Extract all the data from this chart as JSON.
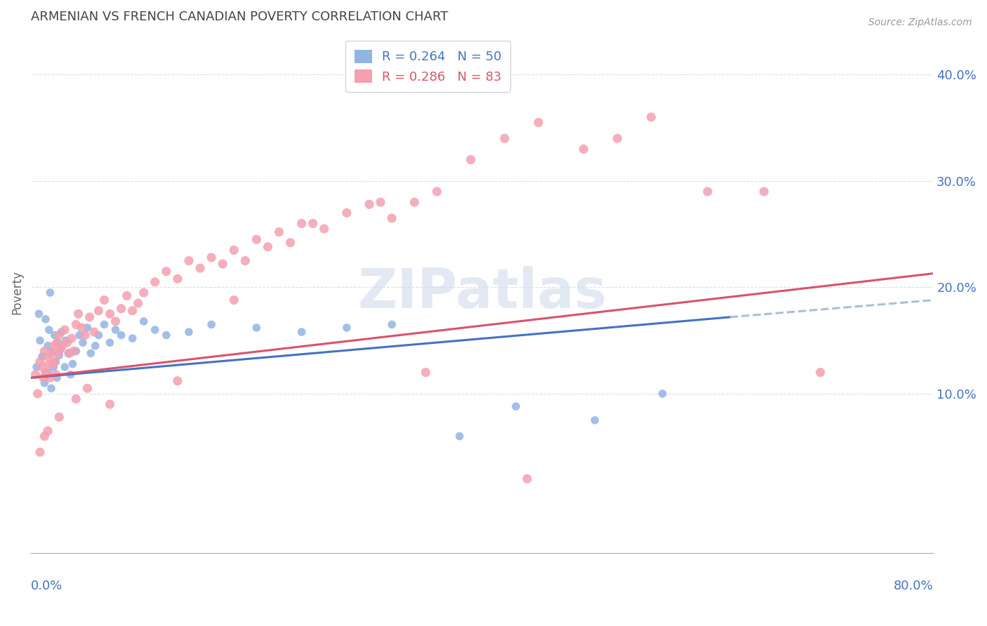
{
  "title": "ARMENIAN VS FRENCH CANADIAN POVERTY CORRELATION CHART",
  "source": "Source: ZipAtlas.com",
  "ylabel": "Poverty",
  "xlim": [
    0.0,
    0.8
  ],
  "ylim": [
    -0.05,
    0.44
  ],
  "yticks": [
    0.1,
    0.2,
    0.3,
    0.4
  ],
  "ytick_labels": [
    "10.0%",
    "20.0%",
    "30.0%",
    "40.0%"
  ],
  "xtick_left_label": "0.0%",
  "xtick_right_label": "80.0%",
  "armenian_color": "#92b4e3",
  "french_color": "#f4a0b0",
  "trendline_armenian_color": "#4472c4",
  "trendline_french_color": "#d9536a",
  "trendline_extension_color": "#a8bfd8",
  "legend_r_armenian": "R = 0.264",
  "legend_n_armenian": "N = 50",
  "legend_r_french": "R = 0.286",
  "legend_n_french": "N = 83",
  "watermark": "ZIPatlas",
  "background_color": "#ffffff",
  "grid_color": "#d8e0ec",
  "title_color": "#444444",
  "axis_label_color": "#4472c4",
  "armenian_marker_size": 70,
  "french_marker_size": 90,
  "trendline_armenian_x0": 0.0,
  "trendline_armenian_x1": 0.62,
  "trendline_armenian_y0": 0.115,
  "trendline_armenian_y1": 0.172,
  "trendline_ext_x0": 0.62,
  "trendline_ext_x1": 0.8,
  "trendline_ext_y0": 0.172,
  "trendline_ext_y1": 0.188,
  "trendline_french_x0": 0.0,
  "trendline_french_x1": 0.8,
  "trendline_french_y0": 0.115,
  "trendline_french_y1": 0.213,
  "arm_x": [
    0.005,
    0.007,
    0.008,
    0.01,
    0.012,
    0.013,
    0.015,
    0.015,
    0.016,
    0.017,
    0.018,
    0.019,
    0.02,
    0.021,
    0.022,
    0.023,
    0.024,
    0.025,
    0.026,
    0.027,
    0.03,
    0.031,
    0.033,
    0.035,
    0.037,
    0.04,
    0.043,
    0.046,
    0.05,
    0.053,
    0.057,
    0.06,
    0.065,
    0.07,
    0.075,
    0.08,
    0.09,
    0.1,
    0.11,
    0.12,
    0.14,
    0.16,
    0.2,
    0.24,
    0.28,
    0.32,
    0.38,
    0.43,
    0.5,
    0.56
  ],
  "arm_y": [
    0.125,
    0.175,
    0.15,
    0.135,
    0.11,
    0.17,
    0.145,
    0.12,
    0.16,
    0.195,
    0.105,
    0.14,
    0.125,
    0.155,
    0.13,
    0.115,
    0.148,
    0.136,
    0.142,
    0.158,
    0.125,
    0.15,
    0.138,
    0.118,
    0.128,
    0.14,
    0.155,
    0.148,
    0.162,
    0.138,
    0.145,
    0.155,
    0.165,
    0.148,
    0.16,
    0.155,
    0.152,
    0.168,
    0.16,
    0.155,
    0.158,
    0.165,
    0.162,
    0.158,
    0.162,
    0.165,
    0.06,
    0.088,
    0.075,
    0.1
  ],
  "fr_x": [
    0.004,
    0.006,
    0.008,
    0.01,
    0.011,
    0.012,
    0.013,
    0.014,
    0.015,
    0.016,
    0.017,
    0.018,
    0.019,
    0.02,
    0.021,
    0.022,
    0.023,
    0.024,
    0.025,
    0.026,
    0.028,
    0.03,
    0.032,
    0.034,
    0.036,
    0.038,
    0.04,
    0.042,
    0.045,
    0.048,
    0.052,
    0.056,
    0.06,
    0.065,
    0.07,
    0.075,
    0.08,
    0.085,
    0.09,
    0.095,
    0.1,
    0.11,
    0.12,
    0.13,
    0.14,
    0.15,
    0.16,
    0.17,
    0.18,
    0.19,
    0.2,
    0.21,
    0.22,
    0.23,
    0.24,
    0.26,
    0.28,
    0.3,
    0.32,
    0.34,
    0.36,
    0.39,
    0.42,
    0.45,
    0.49,
    0.52,
    0.55,
    0.6,
    0.65,
    0.7,
    0.18,
    0.25,
    0.31,
    0.07,
    0.13,
    0.05,
    0.04,
    0.025,
    0.015,
    0.012,
    0.008,
    0.35,
    0.44
  ],
  "fr_y": [
    0.118,
    0.1,
    0.13,
    0.125,
    0.115,
    0.14,
    0.12,
    0.118,
    0.135,
    0.128,
    0.115,
    0.138,
    0.128,
    0.145,
    0.13,
    0.118,
    0.148,
    0.138,
    0.155,
    0.142,
    0.145,
    0.16,
    0.148,
    0.138,
    0.152,
    0.14,
    0.165,
    0.175,
    0.162,
    0.155,
    0.172,
    0.158,
    0.178,
    0.188,
    0.175,
    0.168,
    0.18,
    0.192,
    0.178,
    0.185,
    0.195,
    0.205,
    0.215,
    0.208,
    0.225,
    0.218,
    0.228,
    0.222,
    0.235,
    0.225,
    0.245,
    0.238,
    0.252,
    0.242,
    0.26,
    0.255,
    0.27,
    0.278,
    0.265,
    0.28,
    0.29,
    0.32,
    0.34,
    0.355,
    0.33,
    0.34,
    0.36,
    0.29,
    0.29,
    0.12,
    0.188,
    0.26,
    0.28,
    0.09,
    0.112,
    0.105,
    0.095,
    0.078,
    0.065,
    0.06,
    0.045,
    0.12,
    0.02
  ]
}
